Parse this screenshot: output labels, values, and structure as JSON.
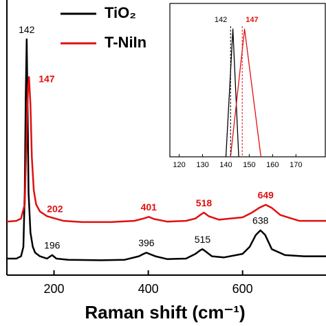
{
  "chart_data": [
    {
      "type": "line",
      "x_label": "Raman shift (cm⁻¹)",
      "xlim": [
        100,
        777
      ],
      "ylim": [
        0,
        105
      ],
      "xticks": [
        200,
        400,
        600
      ],
      "legend": "top-left",
      "series": [
        {
          "name": "TiO₂",
          "color": "#000000",
          "x": [
            100,
            120,
            130,
            135,
            138,
            140,
            142,
            144,
            146,
            150,
            155,
            160,
            170,
            185,
            196,
            205,
            230,
            300,
            350,
            380,
            390,
            396,
            402,
            415,
            440,
            480,
            500,
            510,
            515,
            522,
            535,
            560,
            600,
            615,
            628,
            638,
            648,
            662,
            690,
            730,
            777
          ],
          "values": [
            7,
            7,
            8,
            12,
            35,
            75,
            100,
            70,
            35,
            18,
            12,
            9.5,
            8,
            7,
            8.5,
            7,
            6.5,
            6.3,
            6.5,
            8,
            9,
            9.5,
            9,
            8,
            6.8,
            7,
            9,
            10.5,
            11,
            10,
            8,
            7.5,
            9,
            12,
            17,
            19,
            17,
            11,
            8.5,
            8,
            8
          ],
          "peaks": [
            142,
            196,
            396,
            515,
            638
          ]
        },
        {
          "name": "T-NiIn",
          "color": "#e01010",
          "x": [
            100,
            120,
            130,
            138,
            142,
            145,
            147,
            150,
            153,
            157,
            162,
            170,
            185,
            202,
            220,
            260,
            320,
            370,
            390,
            401,
            412,
            440,
            480,
            500,
            510,
            518,
            528,
            550,
            600,
            620,
            635,
            649,
            662,
            680,
            720,
            777
          ],
          "values": [
            22.7,
            23,
            24,
            30,
            60,
            80,
            84,
            72,
            50,
            36,
            30,
            27,
            25,
            24,
            23,
            22.5,
            22.5,
            23,
            24,
            24.7,
            23.8,
            22.7,
            23,
            24,
            25.5,
            26.5,
            25,
            23.5,
            24.5,
            26.5,
            28.5,
            29.8,
            28.5,
            25.5,
            23,
            23
          ],
          "peaks": [
            147,
            202,
            401,
            518,
            649
          ]
        }
      ]
    },
    {
      "type": "line",
      "xlim": [
        116,
        182
      ],
      "ylim": [
        0,
        120
      ],
      "xticks": [
        120,
        130,
        140,
        150,
        160,
        170
      ],
      "series": [
        {
          "color": "#000000",
          "x": [
            140,
            143,
            145.5
          ],
          "values": [
            0,
            100,
            0
          ],
          "peaks": [
            142
          ]
        },
        {
          "color": "#e01010",
          "x": [
            142,
            148,
            155
          ],
          "values": [
            0,
            100,
            0
          ],
          "peaks": [
            147
          ]
        }
      ]
    }
  ]
}
